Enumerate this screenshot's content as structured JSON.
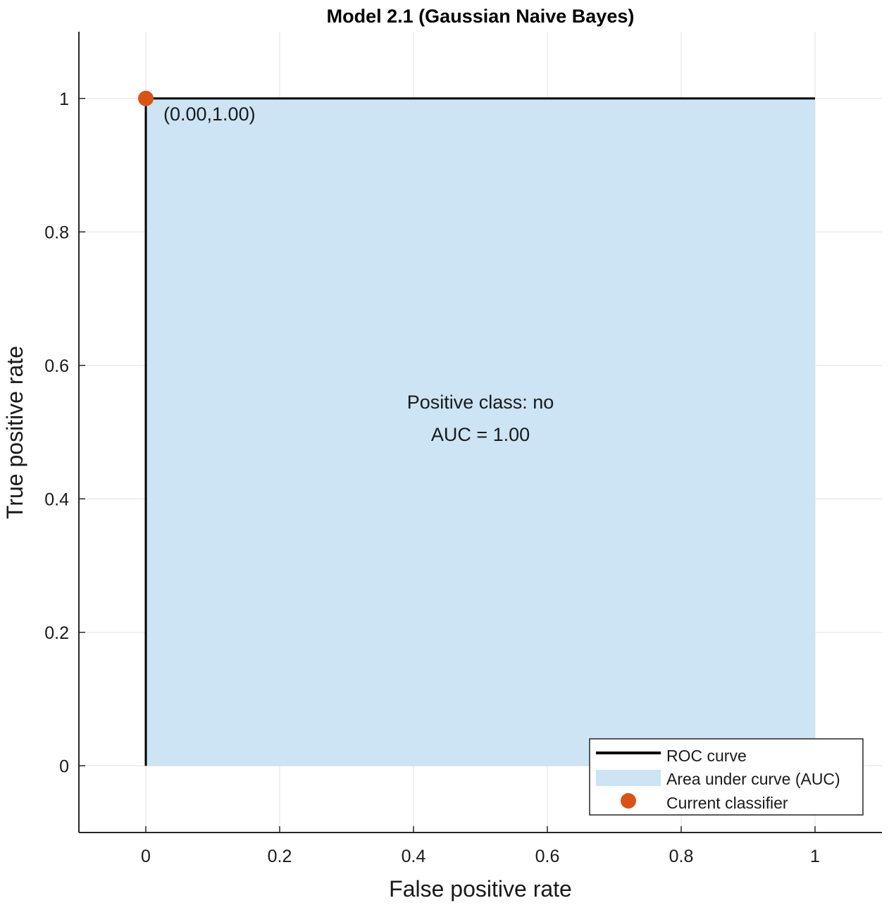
{
  "chart_data": {
    "type": "area",
    "title": "Model 2.1 (Gaussian Naive Bayes)",
    "xlabel": "False positive rate",
    "ylabel": "True positive rate",
    "xlim": [
      -0.1,
      1.1
    ],
    "ylim": [
      -0.1,
      1.1
    ],
    "xticks": [
      0,
      0.2,
      0.4,
      0.6,
      0.8,
      1
    ],
    "yticks": [
      0,
      0.2,
      0.4,
      0.6,
      0.8,
      1
    ],
    "xtick_labels": [
      "0",
      "0.2",
      "0.4",
      "0.6",
      "0.8",
      "1"
    ],
    "ytick_labels": [
      "0",
      "0.2",
      "0.4",
      "0.6",
      "0.8",
      "1"
    ],
    "grid": true,
    "series": [
      {
        "name": "ROC curve",
        "x": [
          0,
          0,
          1
        ],
        "y": [
          0,
          1,
          1
        ],
        "color": "#000000"
      },
      {
        "name": "Area under curve (AUC)",
        "x": [
          0,
          0,
          1,
          1
        ],
        "y": [
          0,
          1,
          1,
          0
        ],
        "color": "#cce4f3"
      },
      {
        "name": "Current classifier",
        "x": [
          0
        ],
        "y": [
          1
        ],
        "color": "#d95319"
      }
    ],
    "point_label": "(0.00,1.00)",
    "annotations": [
      "Positive class: no",
      "AUC = 1.00"
    ],
    "legend_position": "bottom-right"
  }
}
